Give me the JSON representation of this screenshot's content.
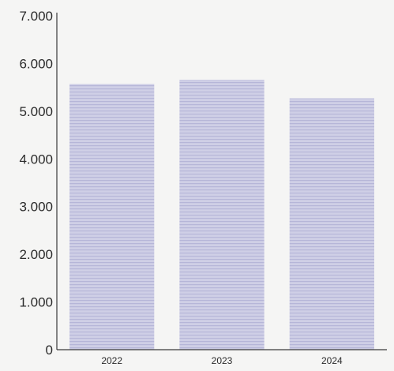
{
  "chart_data": {
    "type": "bar",
    "categories": [
      "2022",
      "2023",
      "2024"
    ],
    "values": [
      5570,
      5660,
      5270
    ],
    "ylim": [
      0,
      7000
    ],
    "y_ticks": [
      0,
      1000,
      2000,
      3000,
      4000,
      5000,
      6000,
      7000
    ],
    "y_tick_labels": [
      "0",
      "1.000",
      "2.000",
      "3.000",
      "4.000",
      "5.000",
      "6.000",
      "7.000"
    ],
    "grid": false,
    "bar_color": "#c9c9e3",
    "stripe_color": "#b3b3d6"
  }
}
